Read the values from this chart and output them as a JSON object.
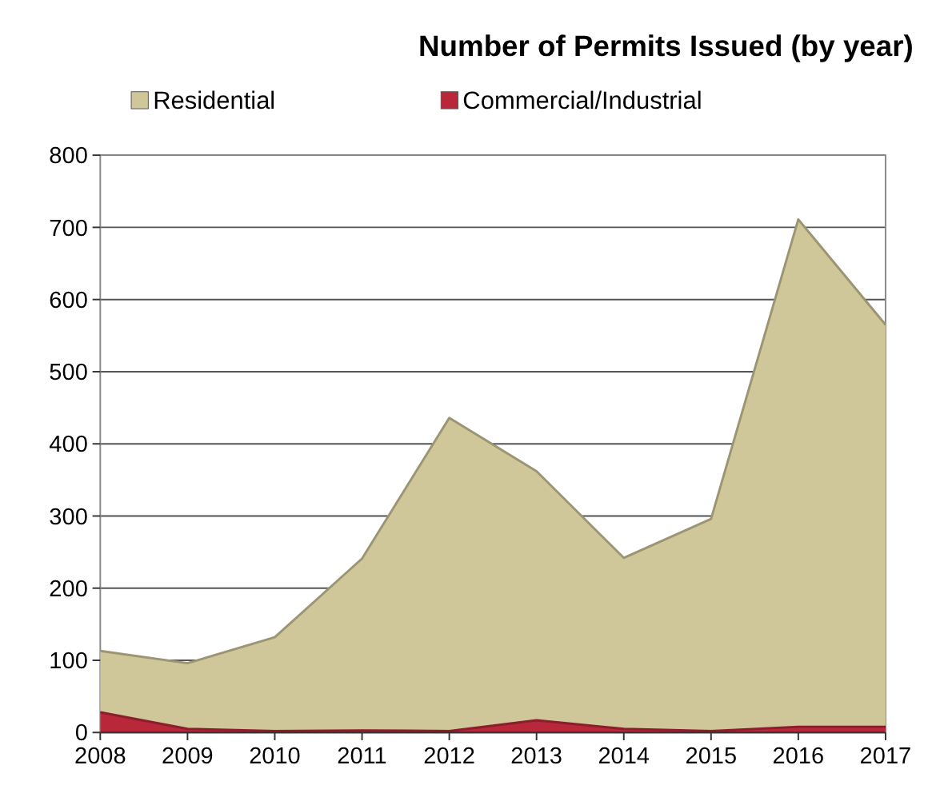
{
  "chart_data": {
    "type": "area",
    "title": "Number of Permits Issued (by year)",
    "categories": [
      "2008",
      "2009",
      "2010",
      "2011",
      "2012",
      "2013",
      "2014",
      "2015",
      "2016",
      "2017"
    ],
    "series": [
      {
        "name": "Residential",
        "color": "#cfc699",
        "values": [
          113,
          96,
          132,
          241,
          436,
          362,
          242,
          296,
          711,
          565
        ]
      },
      {
        "name": "Commercial/Industrial",
        "color": "#b8283a",
        "values": [
          28,
          5,
          2,
          3,
          2,
          17,
          5,
          2,
          8,
          8
        ]
      }
    ],
    "ylim": [
      0,
      800
    ],
    "yticks": [
      0,
      100,
      200,
      300,
      400,
      500,
      600,
      700,
      800
    ],
    "grid": "y",
    "legend": "top"
  }
}
